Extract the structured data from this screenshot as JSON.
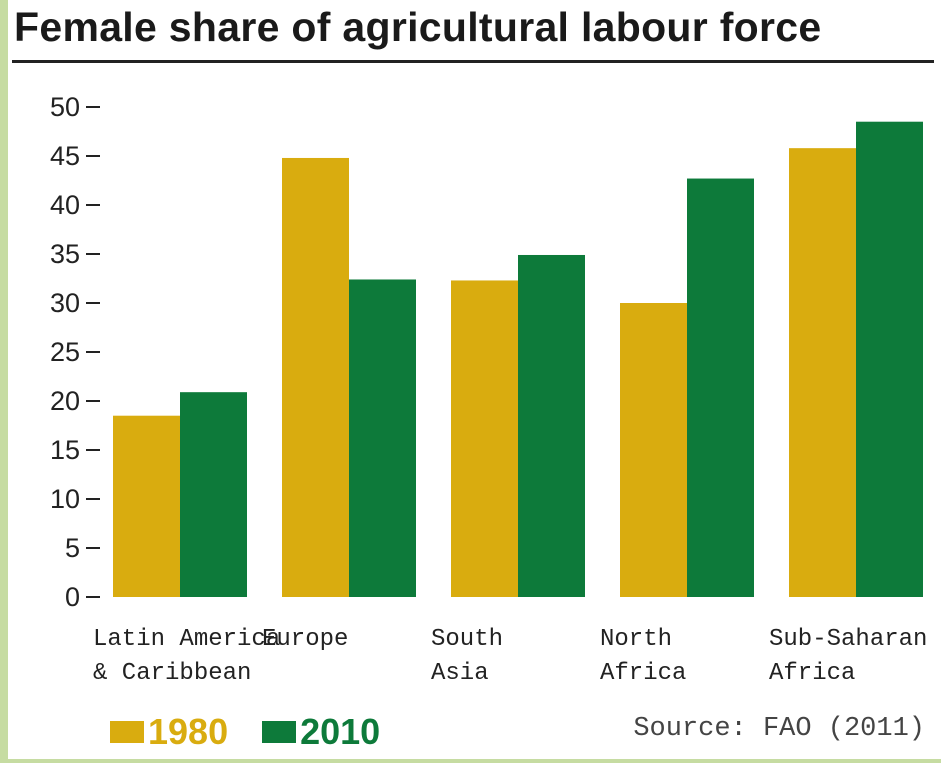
{
  "chart_data": {
    "type": "bar",
    "title": "Female share of agricultural labour force",
    "categories": [
      [
        "Latin America",
        "& Caribbean"
      ],
      [
        "Europe"
      ],
      [
        "South",
        "Asia"
      ],
      [
        "North",
        "Africa"
      ],
      [
        "Sub-Saharan",
        "Africa"
      ]
    ],
    "series": [
      {
        "name": "1980",
        "color": "#d9ac0f",
        "values": [
          18.5,
          44.8,
          32.3,
          30.0,
          45.8
        ]
      },
      {
        "name": "2010",
        "color": "#0d7a3a",
        "values": [
          20.9,
          32.4,
          34.9,
          42.7,
          48.5
        ]
      }
    ],
    "ylim": [
      0,
      50
    ],
    "yticks": [
      0,
      5,
      10,
      15,
      20,
      25,
      30,
      35,
      40,
      45,
      50
    ],
    "xlabel": "",
    "ylabel": "",
    "grid": false,
    "legend": "bottom-left"
  },
  "source": "Source: FAO (2011)"
}
